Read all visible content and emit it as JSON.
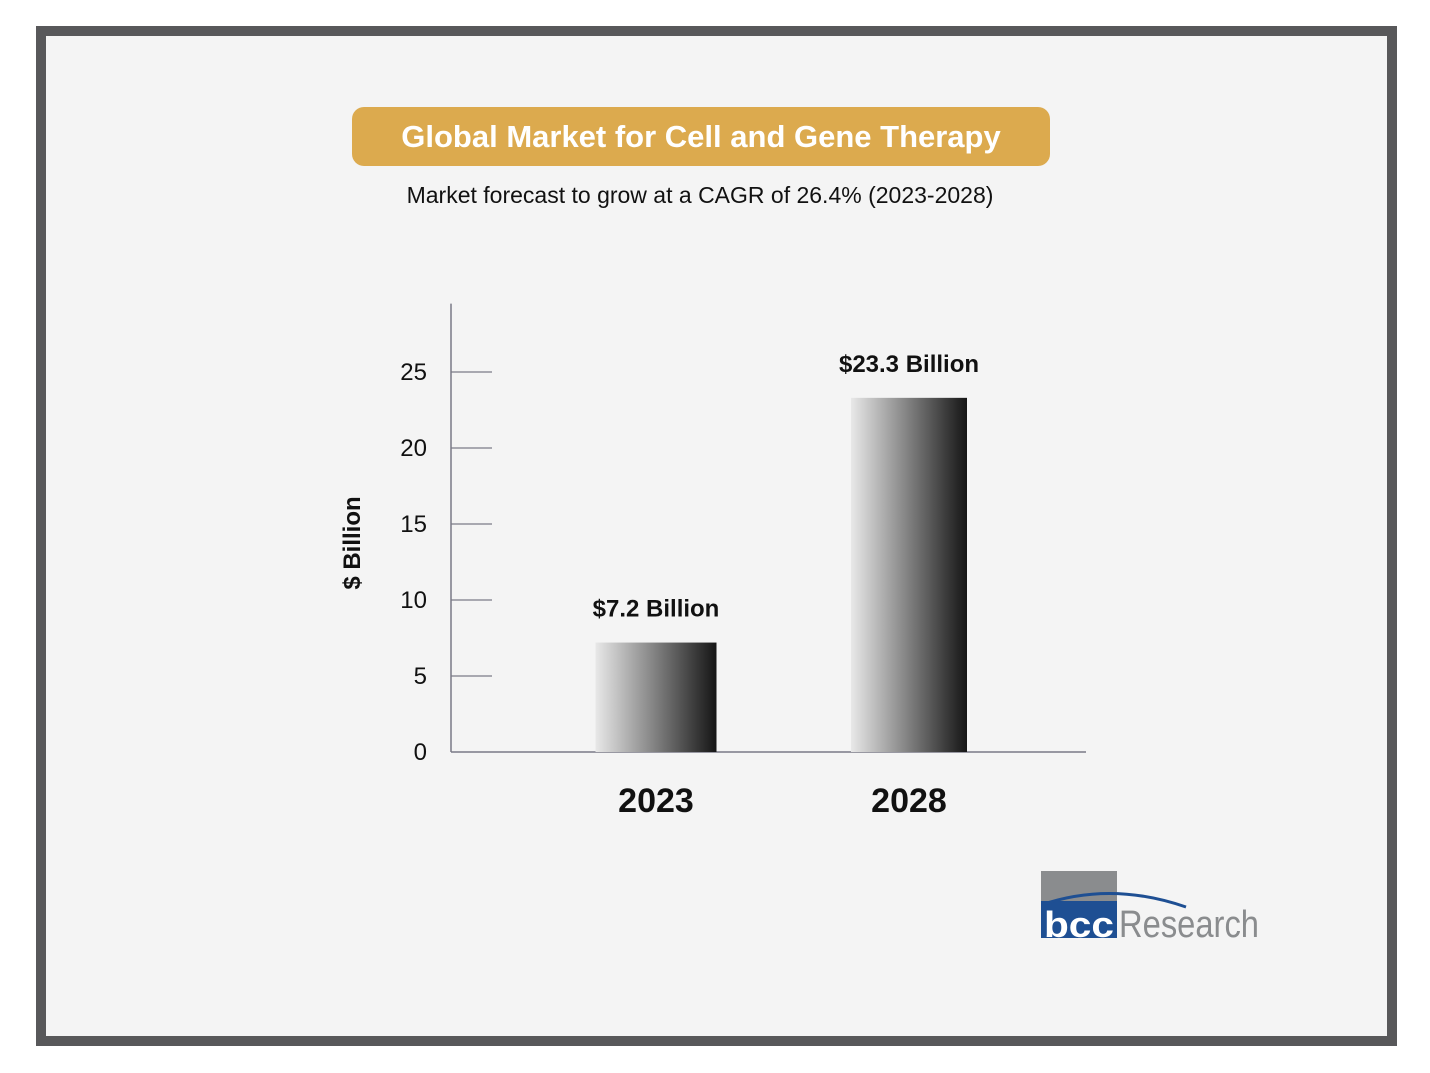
{
  "chart_data": {
    "type": "bar",
    "title": "Global Market for Cell and Gene Therapy",
    "subtitle": "Market forecast to grow at a CAGR of 26.4% (2023-2028)",
    "xlabel": "",
    "ylabel": "$ Billion",
    "categories": [
      "2023",
      "2028"
    ],
    "values": [
      7.2,
      23.3
    ],
    "data_labels": [
      "$7.2 Billion",
      "$23.3 Billion"
    ],
    "yticks": [
      0,
      5,
      10,
      15,
      20,
      25
    ],
    "ylim": [
      0,
      29.5
    ],
    "grid": false,
    "legend": "none",
    "colors": {
      "title_bg": "#dcaa4e",
      "bar_light": "#e6e6e6",
      "bar_dark": "#1a1a1a",
      "frame": "#58585a"
    }
  },
  "logo": {
    "text": "bccResearch",
    "colors": {
      "blue": "#1e4f93",
      "gray": "#8a8c8e"
    }
  }
}
